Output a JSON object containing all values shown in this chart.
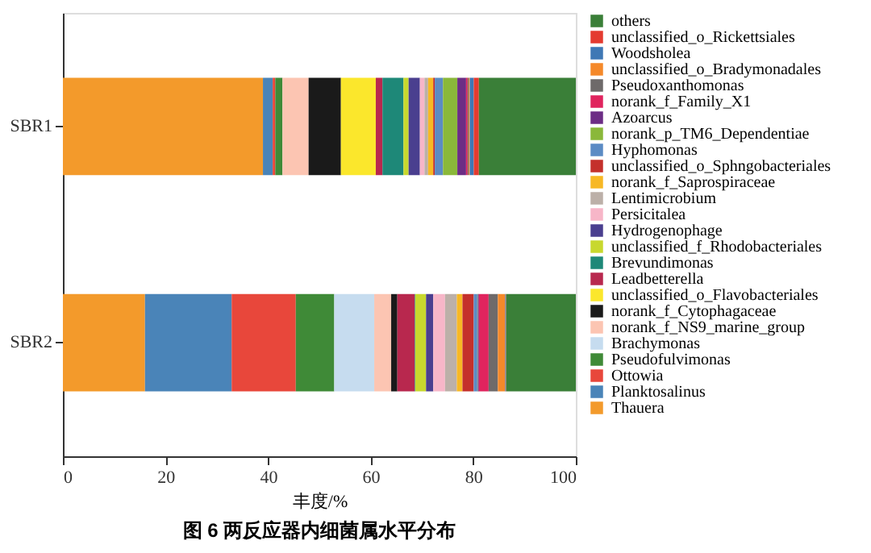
{
  "chart_data": {
    "type": "bar",
    "orientation": "horizontal",
    "stacked": true,
    "title": "图 6 两反应器内细菌属水平分布",
    "xlabel": "丰度/%",
    "categories": [
      "SBR1",
      "SBR2"
    ],
    "xlim": [
      0,
      100
    ],
    "xticks": [
      0,
      20,
      40,
      60,
      80,
      100
    ],
    "grid": false,
    "legend": "right",
    "series": [
      {
        "name": "Thauera",
        "color": "#f39a2b",
        "values": [
          39.0,
          16.0
        ]
      },
      {
        "name": "Planktosalinus",
        "color": "#4a84b8",
        "values": [
          1.9,
          16.9
        ]
      },
      {
        "name": "Ottowia",
        "color": "#e8473b",
        "values": [
          0.5,
          12.5
        ]
      },
      {
        "name": "Pseudofulvimonas",
        "color": "#3f8a37",
        "values": [
          1.4,
          7.5
        ]
      },
      {
        "name": "Brachymonas",
        "color": "#c6dcef",
        "values": [
          null,
          7.8
        ]
      },
      {
        "name": "norank_f_NS9_marine_group",
        "color": "#fcc5b2",
        "values": [
          5.1,
          3.3
        ]
      },
      {
        "name": "norank_f_Cytophagaceae",
        "color": "#1a1a1a",
        "values": [
          6.3,
          1.2
        ]
      },
      {
        "name": "unclassified_o_Flavobacteriales",
        "color": "#fbe72c",
        "values": [
          6.8,
          null
        ]
      },
      {
        "name": "Leadbetterella",
        "color": "#b8284e",
        "values": [
          1.3,
          3.4
        ]
      },
      {
        "name": "Brevundimonas",
        "color": "#1e8878",
        "values": [
          4.1,
          0.1
        ]
      },
      {
        "name": "unclassified_f_Rhodobacteriales",
        "color": "#c8d82e",
        "values": [
          1.0,
          2.1
        ]
      },
      {
        "name": "Hydrogenophage",
        "color": "#4a3f8f",
        "values": [
          2.2,
          1.4
        ]
      },
      {
        "name": "Persicitalea",
        "color": "#f7b6c8",
        "values": [
          0.9,
          2.3
        ]
      },
      {
        "name": "Lentimicrobium",
        "color": "#bcb0a8",
        "values": [
          0.7,
          2.3
        ]
      },
      {
        "name": "norank_f_Saprospiraceae",
        "color": "#f7b824",
        "values": [
          1.0,
          1.1
        ]
      },
      {
        "name": "unclassified_o_Sphngobacteriales",
        "color": "#c4302b",
        "values": [
          0.3,
          2.2
        ]
      },
      {
        "name": "Hyphomonas",
        "color": "#5b8bc4",
        "values": [
          1.6,
          0.7
        ]
      },
      {
        "name": "norank_p_TM6_Dependentiae",
        "color": "#8ab83a",
        "values": [
          2.8,
          0.1
        ]
      },
      {
        "name": "Azoarcus",
        "color": "#6c2d85",
        "values": [
          1.7,
          0.2
        ]
      },
      {
        "name": "norank_f_Family_X1",
        "color": "#e0245e",
        "values": [
          0.3,
          1.9
        ]
      },
      {
        "name": "Pseudoxanthomonas",
        "color": "#6e6a6a",
        "values": [
          0.2,
          1.8
        ]
      },
      {
        "name": "unclassified_o_Bradymonadales",
        "color": "#f5892a",
        "values": [
          0.2,
          1.4
        ]
      },
      {
        "name": "Woodsholea",
        "color": "#3f78b5",
        "values": [
          0.8,
          0.1
        ]
      },
      {
        "name": "unclassified_o_Rickettsiales",
        "color": "#e43b30",
        "values": [
          1.0,
          0.1
        ]
      },
      {
        "name": "others",
        "color": "#3a7f38",
        "values": [
          18.9,
          13.6
        ]
      }
    ]
  }
}
